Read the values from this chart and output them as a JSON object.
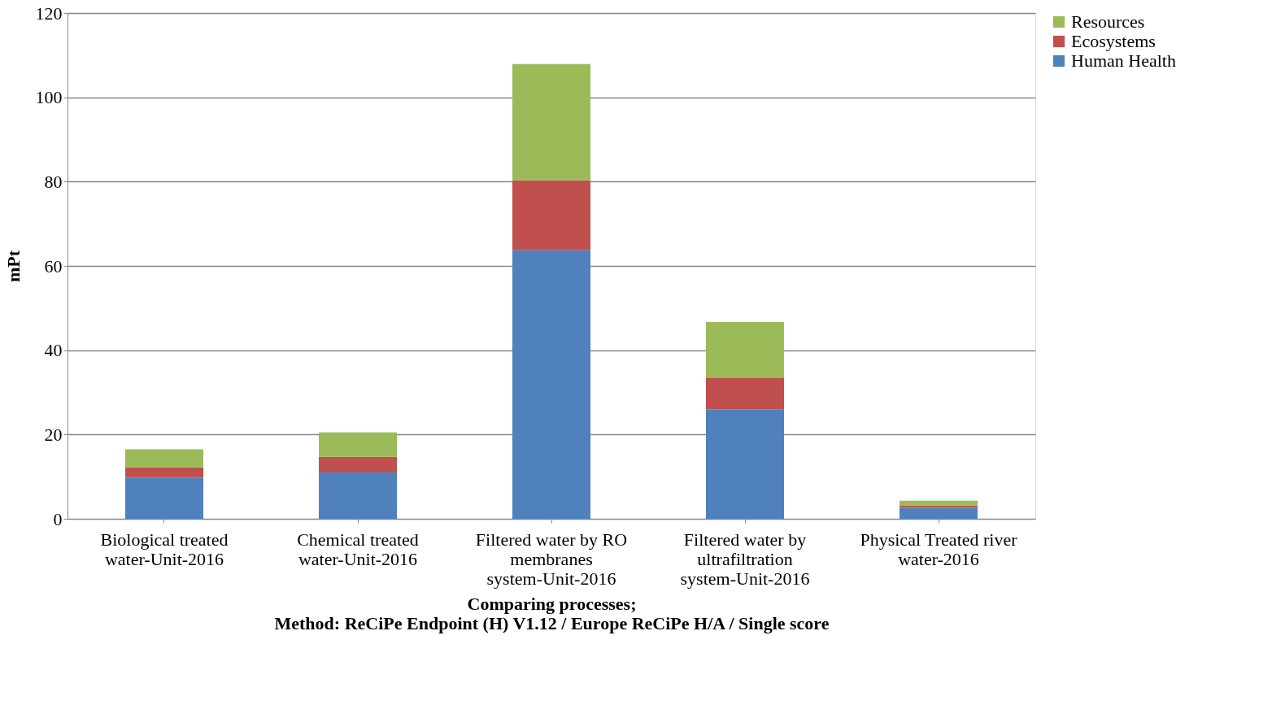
{
  "chart_data": {
    "type": "bar",
    "stacked": true,
    "xlabel": "Comparing processes;\nMethod: ReCiPe Endpoint (H) V1.12 / Europe ReCiPe H/A / Single score",
    "ylabel": "mPt",
    "categories": [
      "Biological treated water-Unit-2016",
      "Chemical treated water-Unit-2016",
      "Filtered water by RO membranes system-Unit-2016",
      "Filtered water by ultrafiltration system-Unit-2016",
      "Physical Treated river water-2016"
    ],
    "series": [
      {
        "name": "Human Health",
        "color": "#4f81bd",
        "values": [
          9.7,
          11.0,
          63.7,
          26.0,
          2.6
        ]
      },
      {
        "name": "Ecosystems",
        "color": "#c0504d",
        "values": [
          2.5,
          3.7,
          16.6,
          7.4,
          0.6
        ]
      },
      {
        "name": "Resources",
        "color": "#9bbb59",
        "values": [
          4.3,
          5.8,
          27.6,
          13.3,
          1.1
        ]
      }
    ],
    "ylim": [
      0,
      120
    ],
    "yticks": [
      0,
      20,
      40,
      60,
      80,
      100,
      120
    ],
    "grid": "y",
    "legend": "right"
  }
}
